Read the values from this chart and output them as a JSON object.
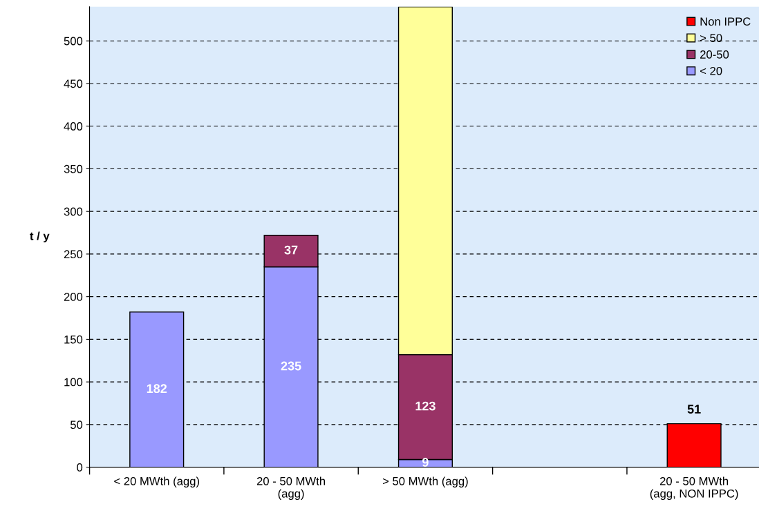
{
  "chart_data": {
    "type": "bar",
    "stacked": true,
    "ylabel": "t / y",
    "categories": [
      "< 20 MWth (agg)",
      "20 - 50 MWth\n(agg)",
      "> 50 MWth (agg)",
      null,
      "20 - 50 MWth\n(agg, NON IPPC)"
    ],
    "series": [
      {
        "name": "< 20",
        "color": "#9999ff",
        "values": [
          182,
          235,
          9,
          null,
          null
        ],
        "value_labels": [
          "182",
          "235",
          "9",
          null,
          null
        ]
      },
      {
        "name": "20-50",
        "color": "#993366",
        "values": [
          null,
          37,
          123,
          null,
          null
        ],
        "value_labels": [
          null,
          "37",
          "123",
          null,
          null
        ]
      },
      {
        "name": "> 50",
        "color": "#ffff99",
        "values": [
          null,
          null,
          408,
          null,
          null
        ]
      },
      {
        "name": "Non IPPC",
        "color": "#ff0000",
        "values": [
          null,
          null,
          null,
          null,
          51
        ],
        "value_labels": [
          null,
          null,
          null,
          null,
          "51"
        ]
      }
    ],
    "ylim": [
      0,
      540
    ],
    "yticks": [
      0,
      50,
      100,
      150,
      200,
      250,
      300,
      350,
      400,
      450,
      500
    ],
    "grid": "y",
    "legend": "top right"
  }
}
